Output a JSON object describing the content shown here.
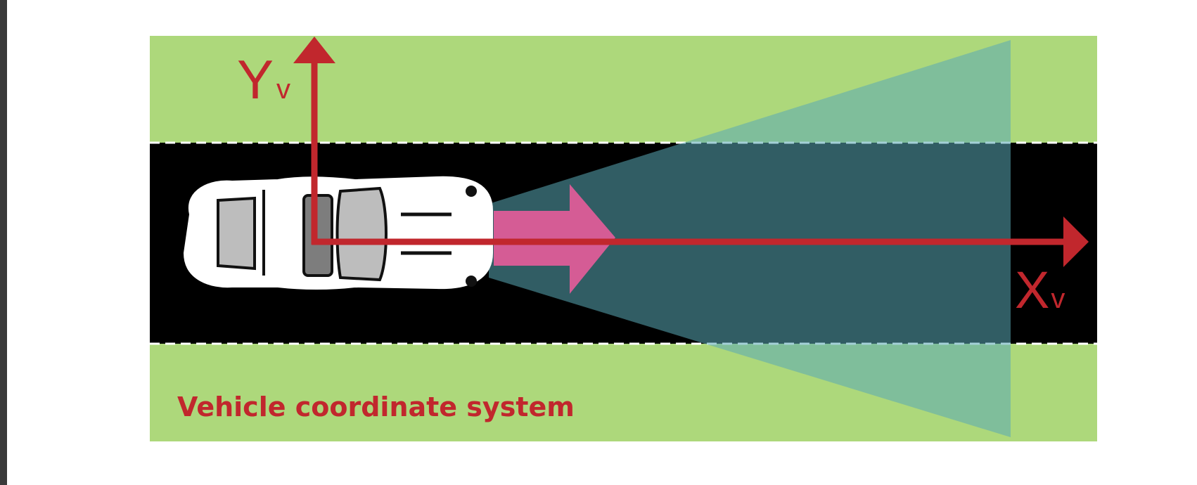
{
  "diagram": {
    "caption": "Vehicle coordinate system",
    "y_axis": {
      "letter": "Y",
      "subscript": "v"
    },
    "x_axis": {
      "letter": "X",
      "subscript": "v"
    }
  },
  "colors": {
    "grass": "#add87b",
    "road": "#000000",
    "lane_marking": "#ffffff",
    "sensor_field": "#5aa9b6",
    "axis": "#c1272d",
    "direction_arrow": "#d55c95",
    "car_body": "#ffffff",
    "car_glass": "#bdbdbd"
  }
}
